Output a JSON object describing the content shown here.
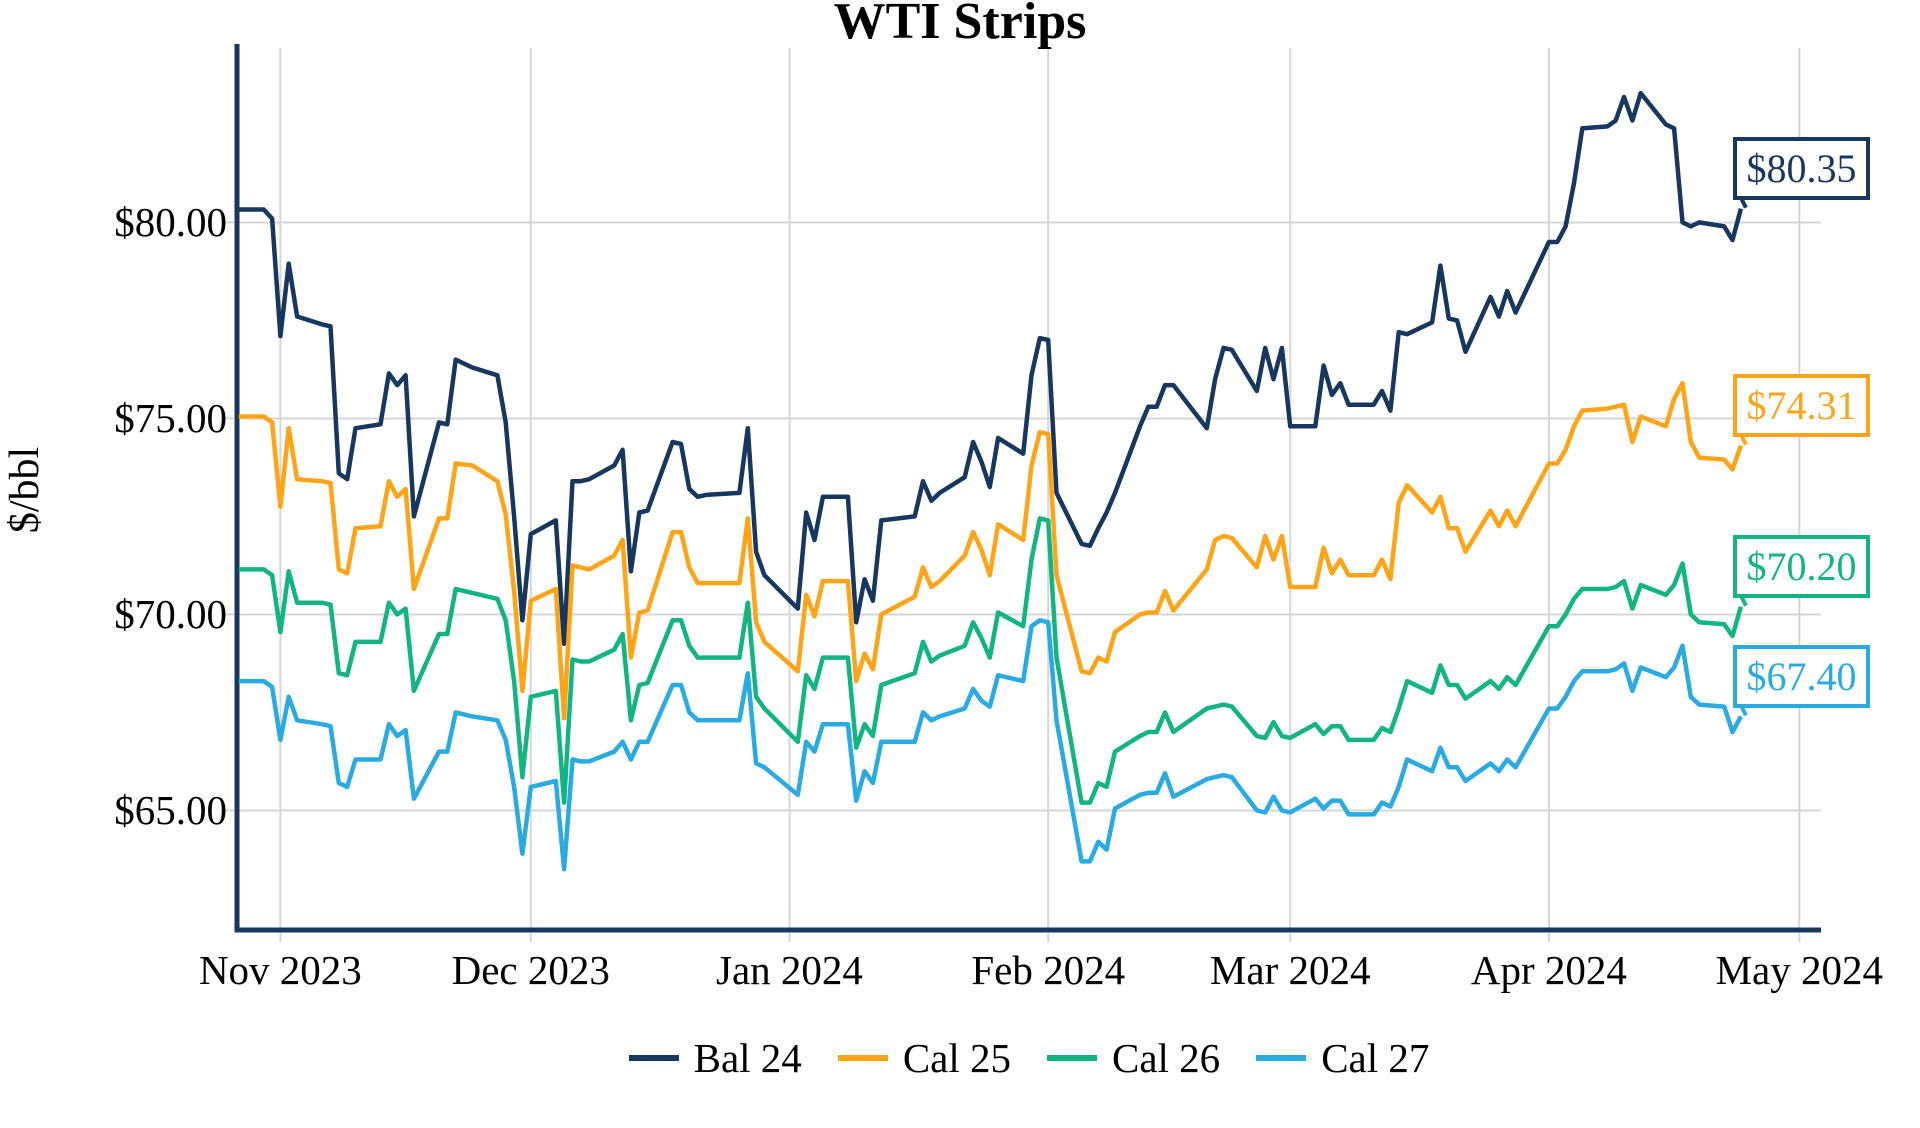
{
  "chart_data": {
    "type": "line",
    "title": "WTI Strips",
    "ylabel": "$/bbl",
    "grid": true,
    "legend_position": "bottom",
    "style": {
      "background": "#FFFFFF",
      "grid_color": "#D6D6D6",
      "spine_color": "#17375E",
      "text_color": "#000000"
    },
    "x_axis": {
      "tick_labels": [
        "Nov 2023",
        "Dec 2023",
        "Jan 2024",
        "Feb 2024",
        "Mar 2024",
        "Apr 2024",
        "May 2024"
      ],
      "tick_day_offsets": [
        5,
        35,
        66,
        97,
        126,
        157,
        187
      ],
      "axis_day_range": [
        -0.2,
        189.6
      ]
    },
    "y_axis": {
      "tick_labels": [
        "$65.00",
        "$70.00",
        "$75.00",
        "$80.00"
      ],
      "tick_values": [
        65,
        70,
        75,
        80
      ],
      "range": [
        61.95,
        84.45
      ]
    },
    "day_offsets": [
      0,
      3,
      4,
      5,
      6,
      7,
      10,
      11,
      12,
      13,
      14,
      17,
      18,
      19,
      20,
      21,
      24,
      25,
      26,
      28,
      31,
      32,
      33,
      34,
      35,
      38,
      39,
      40,
      41,
      42,
      45,
      46,
      47,
      48,
      49,
      52,
      53,
      54,
      55,
      56,
      60,
      61,
      62,
      63,
      67,
      68,
      69,
      70,
      73,
      74,
      75,
      76,
      77,
      81,
      82,
      83,
      84,
      87,
      88,
      89,
      90,
      91,
      94,
      95,
      96,
      97,
      98,
      101,
      102,
      103,
      104,
      105,
      108,
      109,
      110,
      111,
      112,
      116,
      117,
      118,
      119,
      122,
      123,
      124,
      125,
      126,
      129,
      130,
      131,
      132,
      133,
      136,
      137,
      138,
      139,
      140,
      143,
      144,
      145,
      146,
      147,
      150,
      151,
      152,
      153,
      157,
      158,
      159,
      160,
      161,
      164,
      165,
      166,
      167,
      168,
      171,
      172,
      173,
      174,
      175,
      178,
      179,
      180
    ],
    "series": [
      {
        "name": "Bal 24",
        "color": "#17375E",
        "end_label": "$80.35",
        "values": [
          80.33,
          80.33,
          80.1,
          77.1,
          78.95,
          77.6,
          77.4,
          77.35,
          73.6,
          73.45,
          74.75,
          74.85,
          76.15,
          75.85,
          76.1,
          72.5,
          74.9,
          74.85,
          76.5,
          76.3,
          76.1,
          74.9,
          72.5,
          69.85,
          72.05,
          72.4,
          69.25,
          73.4,
          73.4,
          73.45,
          73.8,
          74.2,
          71.1,
          72.6,
          72.65,
          74.4,
          74.35,
          73.2,
          73.0,
          73.05,
          73.1,
          74.75,
          71.6,
          71.0,
          70.15,
          72.6,
          71.9,
          73.0,
          73.0,
          69.8,
          70.9,
          70.35,
          72.4,
          72.5,
          73.4,
          72.9,
          73.1,
          73.5,
          74.4,
          73.9,
          73.25,
          74.5,
          74.1,
          76.1,
          77.05,
          77.0,
          73.1,
          71.8,
          71.75,
          72.2,
          72.6,
          73.1,
          74.8,
          75.3,
          75.3,
          75.85,
          75.85,
          74.75,
          76.0,
          76.8,
          76.75,
          75.7,
          76.8,
          76.0,
          76.8,
          74.8,
          74.8,
          76.35,
          75.6,
          75.9,
          75.35,
          75.35,
          75.7,
          75.2,
          77.2,
          77.15,
          77.45,
          78.9,
          77.55,
          77.5,
          76.7,
          78.1,
          77.6,
          78.25,
          77.7,
          79.5,
          79.5,
          79.9,
          81.0,
          82.4,
          82.45,
          82.6,
          83.2,
          82.6,
          83.3,
          82.5,
          82.4,
          80.0,
          79.9,
          80.0,
          79.9,
          79.55,
          80.35
        ]
      },
      {
        "name": "Cal 25",
        "color": "#FFA317",
        "end_label": "$74.31",
        "values": [
          75.05,
          75.05,
          74.9,
          72.75,
          74.75,
          73.45,
          73.4,
          73.35,
          71.15,
          71.05,
          72.2,
          72.25,
          73.4,
          73.0,
          73.2,
          70.65,
          72.45,
          72.45,
          73.85,
          73.8,
          73.4,
          72.55,
          70.6,
          68.05,
          70.35,
          70.65,
          67.35,
          71.25,
          71.2,
          71.15,
          71.5,
          71.9,
          68.9,
          70.05,
          70.1,
          72.1,
          72.1,
          71.2,
          70.8,
          70.8,
          70.8,
          72.45,
          69.8,
          69.3,
          68.55,
          70.5,
          69.95,
          70.85,
          70.85,
          68.3,
          69.0,
          68.6,
          70.0,
          70.45,
          71.2,
          70.7,
          70.85,
          71.5,
          72.1,
          71.65,
          71.0,
          72.3,
          71.9,
          73.8,
          74.65,
          74.6,
          71.0,
          68.55,
          68.5,
          68.9,
          68.8,
          69.55,
          70.0,
          70.05,
          70.05,
          70.6,
          70.1,
          71.15,
          71.9,
          72.0,
          71.95,
          71.2,
          72.0,
          71.4,
          72.0,
          70.7,
          70.7,
          71.7,
          71.05,
          71.4,
          71.0,
          71.0,
          71.4,
          70.9,
          72.85,
          73.3,
          72.6,
          73.0,
          72.2,
          72.2,
          71.6,
          72.65,
          72.25,
          72.65,
          72.25,
          73.85,
          73.85,
          74.2,
          74.8,
          75.2,
          75.25,
          75.3,
          75.35,
          74.4,
          75.05,
          74.8,
          75.5,
          75.9,
          74.4,
          74.0,
          73.95,
          73.7,
          74.31
        ]
      },
      {
        "name": "Cal 26",
        "color": "#12B581",
        "end_label": "$70.20",
        "values": [
          71.15,
          71.15,
          71.0,
          69.55,
          71.1,
          70.3,
          70.3,
          70.25,
          68.5,
          68.45,
          69.3,
          69.3,
          70.3,
          70.0,
          70.15,
          68.05,
          69.5,
          69.5,
          70.65,
          70.55,
          70.4,
          69.85,
          68.3,
          65.85,
          67.9,
          68.05,
          65.2,
          68.85,
          68.8,
          68.8,
          69.1,
          69.5,
          67.3,
          68.2,
          68.25,
          69.85,
          69.85,
          69.2,
          68.9,
          68.9,
          68.9,
          70.3,
          67.9,
          67.6,
          66.75,
          68.45,
          68.1,
          68.9,
          68.9,
          66.6,
          67.2,
          66.9,
          68.2,
          68.5,
          69.3,
          68.8,
          68.95,
          69.2,
          69.8,
          69.4,
          68.9,
          70.05,
          69.7,
          71.4,
          72.45,
          72.4,
          68.9,
          65.2,
          65.2,
          65.7,
          65.6,
          66.5,
          66.9,
          67.0,
          67.0,
          67.5,
          67.0,
          67.6,
          67.65,
          67.7,
          67.65,
          66.9,
          66.85,
          67.25,
          66.9,
          66.85,
          67.2,
          66.95,
          67.15,
          67.15,
          66.8,
          66.8,
          67.1,
          67.0,
          67.6,
          68.3,
          68.0,
          68.7,
          68.2,
          68.2,
          67.85,
          68.3,
          68.1,
          68.4,
          68.2,
          69.7,
          69.7,
          70.0,
          70.4,
          70.65,
          70.65,
          70.7,
          70.85,
          70.15,
          70.75,
          70.5,
          70.75,
          71.3,
          70.0,
          69.8,
          69.75,
          69.45,
          70.2
        ]
      },
      {
        "name": "Cal 27",
        "color": "#29ABE2",
        "end_label": "$67.40",
        "values": [
          68.3,
          68.3,
          68.15,
          66.8,
          67.9,
          67.3,
          67.2,
          67.15,
          65.7,
          65.6,
          66.3,
          66.3,
          67.2,
          66.9,
          67.05,
          65.3,
          66.5,
          66.5,
          67.5,
          67.4,
          67.3,
          66.8,
          65.6,
          63.9,
          65.6,
          65.75,
          63.5,
          66.3,
          66.25,
          66.25,
          66.5,
          66.75,
          66.3,
          66.75,
          66.75,
          68.2,
          68.2,
          67.5,
          67.3,
          67.3,
          67.3,
          68.5,
          66.2,
          66.1,
          65.4,
          66.75,
          66.5,
          67.2,
          67.2,
          65.25,
          66.0,
          65.7,
          66.75,
          66.75,
          67.5,
          67.3,
          67.4,
          67.6,
          68.1,
          67.8,
          67.65,
          68.45,
          68.3,
          69.7,
          69.85,
          69.8,
          67.3,
          63.7,
          63.7,
          64.2,
          64.0,
          65.05,
          65.4,
          65.45,
          65.45,
          65.95,
          65.35,
          65.8,
          65.85,
          65.9,
          65.85,
          65.0,
          64.95,
          65.35,
          65.0,
          64.95,
          65.3,
          65.05,
          65.25,
          65.25,
          64.9,
          64.9,
          65.2,
          65.1,
          65.6,
          66.3,
          66.0,
          66.6,
          66.1,
          66.1,
          65.75,
          66.2,
          66.0,
          66.3,
          66.1,
          67.6,
          67.6,
          67.9,
          68.3,
          68.55,
          68.55,
          68.6,
          68.75,
          68.05,
          68.65,
          68.4,
          68.65,
          69.2,
          67.9,
          67.7,
          67.65,
          67.0,
          67.4
        ]
      }
    ]
  }
}
